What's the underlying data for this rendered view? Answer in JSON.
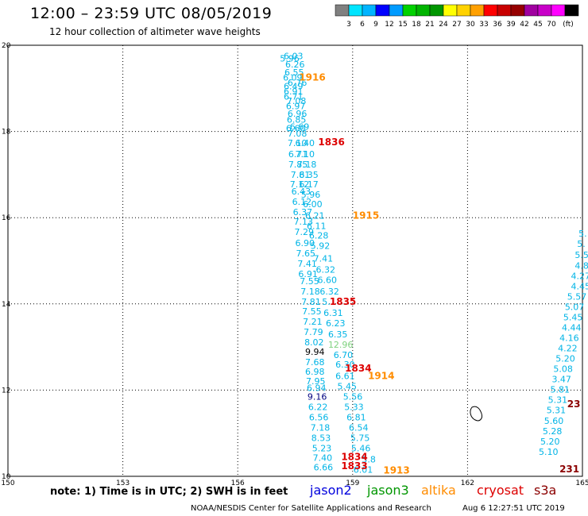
{
  "header": {
    "title": "12:00 – 23:59 UTC 08/05/2019",
    "subtitle": "12 hour collection of altimeter wave heights"
  },
  "colorbar": {
    "colors": [
      "#808080",
      "#00e5ff",
      "#00b4ff",
      "#0000ff",
      "#009bff",
      "#00d200",
      "#00b400",
      "#009600",
      "#ffff00",
      "#ffd200",
      "#ffa000",
      "#ff0000",
      "#c80000",
      "#960000",
      "#a000a0",
      "#c800c8",
      "#ff00ff",
      "#000000"
    ],
    "labels": [
      "3",
      "6",
      "9",
      "12",
      "15",
      "18",
      "21",
      "24",
      "27",
      "30",
      "33",
      "36",
      "39",
      "42",
      "45",
      "70",
      "(ft)"
    ]
  },
  "map": {
    "x_ticks": [
      "150",
      "153",
      "156",
      "159",
      "162",
      "165"
    ],
    "y_ticks": [
      "10",
      "12",
      "14",
      "16",
      "18",
      "20"
    ],
    "lon_range": [
      150,
      165
    ],
    "lat_range": [
      10,
      20
    ]
  },
  "track_colors": {
    "jason2": "#0000dd",
    "jason3": "#009600",
    "altika": "#ff8c00",
    "cryosat": "#dd0000",
    "s3a": "#8b0000",
    "wave": "#00b4e6"
  },
  "time_labels": [
    {
      "text": "1916",
      "lon": 157.6,
      "lat": 19.18,
      "color": "#ff8c00"
    },
    {
      "text": "1836",
      "lon": 158.1,
      "lat": 17.68,
      "color": "#dd0000"
    },
    {
      "text": "1915",
      "lon": 159.0,
      "lat": 15.98,
      "color": "#ff8c00"
    },
    {
      "text": "1835",
      "lon": 158.4,
      "lat": 13.98,
      "color": "#dd0000"
    },
    {
      "text": "1834",
      "lon": 158.8,
      "lat": 12.43,
      "color": "#dd0000"
    },
    {
      "text": "1914",
      "lon": 159.4,
      "lat": 12.26,
      "color": "#ff8c00"
    },
    {
      "text": "1834",
      "lon": 158.7,
      "lat": 10.38,
      "color": "#dd0000"
    },
    {
      "text": "1833",
      "lon": 158.7,
      "lat": 10.17,
      "color": "#dd0000"
    },
    {
      "text": "1913",
      "lon": 159.8,
      "lat": 10.06,
      "color": "#ff8c00"
    },
    {
      "text": "23",
      "lon": 164.6,
      "lat": 11.6,
      "color": "#8b0000"
    },
    {
      "text": "231",
      "lon": 164.4,
      "lat": 10.09,
      "color": "#8b0000"
    }
  ],
  "wave_labels": [
    {
      "text": "6.03",
      "lon": 157.2,
      "lat": 19.68,
      "color": "#00b4e6"
    },
    {
      "text": "5.96",
      "lon": 157.1,
      "lat": 19.62,
      "color": "#00b4e6"
    },
    {
      "text": "6.26",
      "lon": 157.24,
      "lat": 19.48,
      "color": "#00b4e6"
    },
    {
      "text": "6.55",
      "lon": 157.22,
      "lat": 19.3,
      "color": "#00b4e6"
    },
    {
      "text": "6.09",
      "lon": 157.18,
      "lat": 19.18,
      "color": "#00b4e6"
    },
    {
      "text": "6.76",
      "lon": 157.3,
      "lat": 19.06,
      "color": "#00b4e6"
    },
    {
      "text": "6.49",
      "lon": 157.2,
      "lat": 18.98,
      "color": "#00b4e6"
    },
    {
      "text": "6.91",
      "lon": 157.2,
      "lat": 18.86,
      "color": "#00b4e6"
    },
    {
      "text": "6.71",
      "lon": 157.2,
      "lat": 18.74,
      "color": "#00b4e6"
    },
    {
      "text": "7.08",
      "lon": 157.28,
      "lat": 18.64,
      "color": "#00b4e6"
    },
    {
      "text": "6.97",
      "lon": 157.26,
      "lat": 18.52,
      "color": "#00b4e6"
    },
    {
      "text": "6.96",
      "lon": 157.3,
      "lat": 18.34,
      "color": "#00b4e6"
    },
    {
      "text": "6.85",
      "lon": 157.28,
      "lat": 18.2,
      "color": "#00b4e6"
    },
    {
      "text": "6.69",
      "lon": 157.36,
      "lat": 18.04,
      "color": "#00b4e6"
    },
    {
      "text": "6.60",
      "lon": 157.26,
      "lat": 18.0,
      "color": "#00b4e6"
    },
    {
      "text": "7.08",
      "lon": 157.3,
      "lat": 17.88,
      "color": "#00b4e6"
    },
    {
      "text": "7.10",
      "lon": 157.3,
      "lat": 17.66,
      "color": "#00b4e6"
    },
    {
      "text": "6.40",
      "lon": 157.5,
      "lat": 17.66,
      "color": "#00b4e6"
    },
    {
      "text": "6.71",
      "lon": 157.32,
      "lat": 17.4,
      "color": "#00b4e6"
    },
    {
      "text": "7.10",
      "lon": 157.5,
      "lat": 17.4,
      "color": "#00b4e6"
    },
    {
      "text": "7.85",
      "lon": 157.32,
      "lat": 17.16,
      "color": "#00b4e6"
    },
    {
      "text": "7.18",
      "lon": 157.55,
      "lat": 17.16,
      "color": "#00b4e6"
    },
    {
      "text": "7.81",
      "lon": 157.38,
      "lat": 16.92,
      "color": "#00b4e6"
    },
    {
      "text": "6.35",
      "lon": 157.6,
      "lat": 16.92,
      "color": "#00b4e6"
    },
    {
      "text": "7.12",
      "lon": 157.36,
      "lat": 16.7,
      "color": "#00b4e6"
    },
    {
      "text": "6.17",
      "lon": 157.6,
      "lat": 16.7,
      "color": "#00b4e6"
    },
    {
      "text": "6.43",
      "lon": 157.4,
      "lat": 16.54,
      "color": "#00b4e6"
    },
    {
      "text": "5.96",
      "lon": 157.65,
      "lat": 16.46,
      "color": "#00b4e6"
    },
    {
      "text": "6.12",
      "lon": 157.42,
      "lat": 16.3,
      "color": "#00b4e6"
    },
    {
      "text": "6.00",
      "lon": 157.7,
      "lat": 16.24,
      "color": "#00b4e6"
    },
    {
      "text": "6.37",
      "lon": 157.44,
      "lat": 16.06,
      "color": "#00b4e6"
    },
    {
      "text": "6.21",
      "lon": 157.76,
      "lat": 15.98,
      "color": "#00b4e6"
    },
    {
      "text": "7.13",
      "lon": 157.46,
      "lat": 15.84,
      "color": "#00b4e6"
    },
    {
      "text": "6.11",
      "lon": 157.8,
      "lat": 15.74,
      "color": "#00b4e6"
    },
    {
      "text": "7.29",
      "lon": 157.48,
      "lat": 15.6,
      "color": "#00b4e6"
    },
    {
      "text": "6.28",
      "lon": 157.86,
      "lat": 15.52,
      "color": "#00b4e6"
    },
    {
      "text": "6.90",
      "lon": 157.5,
      "lat": 15.34,
      "color": "#00b4e6"
    },
    {
      "text": "5.92",
      "lon": 157.9,
      "lat": 15.28,
      "color": "#00b4e6"
    },
    {
      "text": "7.65",
      "lon": 157.52,
      "lat": 15.1,
      "color": "#00b4e6"
    },
    {
      "text": "7.41",
      "lon": 157.98,
      "lat": 14.98,
      "color": "#00b4e6"
    },
    {
      "text": "7.41",
      "lon": 157.56,
      "lat": 14.86,
      "color": "#00b4e6"
    },
    {
      "text": "6.32",
      "lon": 158.04,
      "lat": 14.72,
      "color": "#00b4e6"
    },
    {
      "text": "6.91",
      "lon": 157.58,
      "lat": 14.62,
      "color": "#00b4e6"
    },
    {
      "text": "6.60",
      "lon": 158.08,
      "lat": 14.48,
      "color": "#00b4e6"
    },
    {
      "text": "7.55",
      "lon": 157.62,
      "lat": 14.46,
      "color": "#00b4e6"
    },
    {
      "text": "7.18",
      "lon": 157.64,
      "lat": 14.22,
      "color": "#00b4e6"
    },
    {
      "text": "6.32",
      "lon": 158.14,
      "lat": 14.22,
      "color": "#00b4e6"
    },
    {
      "text": "7.81",
      "lon": 157.66,
      "lat": 13.98,
      "color": "#00b4e6"
    },
    {
      "text": "5.",
      "lon": 158.2,
      "lat": 13.98,
      "color": "#00b4e6"
    },
    {
      "text": "7.55",
      "lon": 157.68,
      "lat": 13.76,
      "color": "#00b4e6"
    },
    {
      "text": "6.31",
      "lon": 158.24,
      "lat": 13.72,
      "color": "#00b4e6"
    },
    {
      "text": "7.21",
      "lon": 157.7,
      "lat": 13.52,
      "color": "#00b4e6"
    },
    {
      "text": "6.23",
      "lon": 158.3,
      "lat": 13.48,
      "color": "#00b4e6"
    },
    {
      "text": "7.79",
      "lon": 157.72,
      "lat": 13.28,
      "color": "#00b4e6"
    },
    {
      "text": "6.35",
      "lon": 158.36,
      "lat": 13.22,
      "color": "#00b4e6"
    },
    {
      "text": "8.02",
      "lon": 157.74,
      "lat": 13.04,
      "color": "#00b4e6"
    },
    {
      "text": "12.96",
      "lon": 158.36,
      "lat": 12.98,
      "color": "#7fd27f"
    },
    {
      "text": "9.94",
      "lon": 157.76,
      "lat": 12.82,
      "color": "#000000"
    },
    {
      "text": "6.70",
      "lon": 158.5,
      "lat": 12.74,
      "color": "#00b4e6"
    },
    {
      "text": "7.68",
      "lon": 157.76,
      "lat": 12.58,
      "color": "#00b4e6"
    },
    {
      "text": "6.30",
      "lon": 158.55,
      "lat": 12.52,
      "color": "#00b4e6"
    },
    {
      "text": "6.98",
      "lon": 157.76,
      "lat": 12.36,
      "color": "#00b4e6"
    },
    {
      "text": "6.61",
      "lon": 158.55,
      "lat": 12.26,
      "color": "#00b4e6"
    },
    {
      "text": "7.95",
      "lon": 157.78,
      "lat": 12.14,
      "color": "#00b4e6"
    },
    {
      "text": "5.45",
      "lon": 158.6,
      "lat": 12.02,
      "color": "#00b4e6"
    },
    {
      "text": "6.94",
      "lon": 157.8,
      "lat": 11.98,
      "color": "#00b4e6"
    },
    {
      "text": "9.16",
      "lon": 157.82,
      "lat": 11.78,
      "color": "#000080"
    },
    {
      "text": "5.56",
      "lon": 158.75,
      "lat": 11.78,
      "color": "#00b4e6"
    },
    {
      "text": "6.22",
      "lon": 157.84,
      "lat": 11.54,
      "color": "#00b4e6"
    },
    {
      "text": "5.33",
      "lon": 158.78,
      "lat": 11.54,
      "color": "#00b4e6"
    },
    {
      "text": "6.56",
      "lon": 157.86,
      "lat": 11.3,
      "color": "#00b4e6"
    },
    {
      "text": "6.81",
      "lon": 158.84,
      "lat": 11.3,
      "color": "#00b4e6"
    },
    {
      "text": "7.18",
      "lon": 157.9,
      "lat": 11.06,
      "color": "#00b4e6"
    },
    {
      "text": "6.54",
      "lon": 158.9,
      "lat": 11.06,
      "color": "#00b4e6"
    },
    {
      "text": "8.53",
      "lon": 157.92,
      "lat": 10.82,
      "color": "#00b4e6"
    },
    {
      "text": "5.75",
      "lon": 158.94,
      "lat": 10.82,
      "color": "#00b4e6"
    },
    {
      "text": "5.23",
      "lon": 157.94,
      "lat": 10.58,
      "color": "#00b4e6"
    },
    {
      "text": "5.46",
      "lon": 158.96,
      "lat": 10.58,
      "color": "#00b4e6"
    },
    {
      "text": "7.40",
      "lon": 157.96,
      "lat": 10.36,
      "color": "#00b4e6"
    },
    {
      "text": "5.8",
      "lon": 159.24,
      "lat": 10.32,
      "color": "#00b4e6"
    },
    {
      "text": "6.66",
      "lon": 157.98,
      "lat": 10.14,
      "color": "#00b4e6"
    },
    {
      "text": "6.01",
      "lon": 159.02,
      "lat": 10.08,
      "color": "#00b4e6"
    },
    {
      "text": "5.",
      "lon": 164.9,
      "lat": 15.56,
      "color": "#00b4e6"
    },
    {
      "text": "5.",
      "lon": 164.86,
      "lat": 15.32,
      "color": "#00b4e6"
    },
    {
      "text": "5.5",
      "lon": 164.8,
      "lat": 15.06,
      "color": "#00b4e6"
    },
    {
      "text": "4.8",
      "lon": 164.8,
      "lat": 14.82,
      "color": "#00b4e6"
    },
    {
      "text": "4.27",
      "lon": 164.7,
      "lat": 14.58,
      "color": "#00b4e6"
    },
    {
      "text": "4.45",
      "lon": 164.7,
      "lat": 14.34,
      "color": "#00b4e6"
    },
    {
      "text": "5.57",
      "lon": 164.6,
      "lat": 14.1,
      "color": "#00b4e6"
    },
    {
      "text": "5.07",
      "lon": 164.54,
      "lat": 13.86,
      "color": "#00b4e6"
    },
    {
      "text": "5.45",
      "lon": 164.5,
      "lat": 13.62,
      "color": "#00b4e6"
    },
    {
      "text": "4.44",
      "lon": 164.46,
      "lat": 13.38,
      "color": "#00b4e6"
    },
    {
      "text": "4.16",
      "lon": 164.4,
      "lat": 13.14,
      "color": "#00b4e6"
    },
    {
      "text": "4.22",
      "lon": 164.36,
      "lat": 12.9,
      "color": "#00b4e6"
    },
    {
      "text": "5.20",
      "lon": 164.3,
      "lat": 12.66,
      "color": "#00b4e6"
    },
    {
      "text": "5.08",
      "lon": 164.24,
      "lat": 12.42,
      "color": "#00b4e6"
    },
    {
      "text": "3.47",
      "lon": 164.2,
      "lat": 12.18,
      "color": "#00b4e6"
    },
    {
      "text": "5.81",
      "lon": 164.16,
      "lat": 11.94,
      "color": "#00b4e6"
    },
    {
      "text": "5.31",
      "lon": 164.1,
      "lat": 11.7,
      "color": "#00b4e6"
    },
    {
      "text": "5.31",
      "lon": 164.06,
      "lat": 11.46,
      "color": "#00b4e6"
    },
    {
      "text": "5.60",
      "lon": 164.0,
      "lat": 11.22,
      "color": "#00b4e6"
    },
    {
      "text": "5.28",
      "lon": 163.96,
      "lat": 10.98,
      "color": "#00b4e6"
    },
    {
      "text": "5.20",
      "lon": 163.9,
      "lat": 10.74,
      "color": "#00b4e6"
    },
    {
      "text": "5.10",
      "lon": 163.86,
      "lat": 10.5,
      "color": "#00b4e6"
    }
  ],
  "footer": {
    "note": "note:  1) Time is in UTC;  2) SWH is in feet",
    "missions": [
      {
        "label": "jason2",
        "color": "#0000dd"
      },
      {
        "label": "jason3",
        "color": "#009600"
      },
      {
        "label": "altika",
        "color": "#ff8c00"
      },
      {
        "label": "cryosat",
        "color": "#dd0000"
      },
      {
        "label": "s3a",
        "color": "#8b0000"
      }
    ],
    "credit": "NOAA/NESDIS Center for Satellite Applications and Research",
    "timestamp": "Aug  6 12:27:51 UTC 2019"
  }
}
